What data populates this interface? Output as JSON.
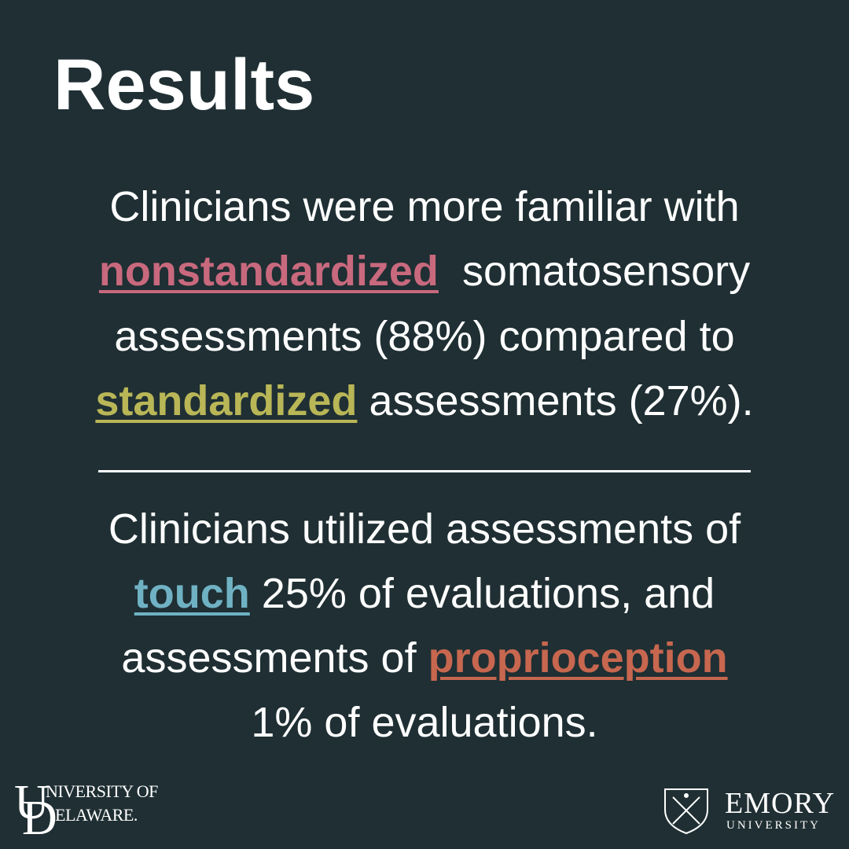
{
  "title": "Results",
  "findings": [
    {
      "lines": [
        [
          "Clinicians were more familiar with"
        ],
        [
          "nonstandardized",
          "somatosensory"
        ],
        [
          "assessments (88%) compared to"
        ],
        [
          "standardized",
          "assessments (27%)."
        ]
      ]
    },
    {
      "lines": [
        [
          "Clinicians utilized assessments of"
        ],
        [
          "touch",
          "25% of evaluations, and"
        ],
        [
          "assessments of",
          "proprioception"
        ],
        [
          "1% of evaluations."
        ]
      ]
    }
  ],
  "logos": {
    "delaware": {
      "line1": "NIVERSITY OF",
      "line2": "ELAWARE.",
      "initials": [
        "U",
        "D"
      ]
    },
    "emory": {
      "name": "EMORY",
      "sub": "UNIVERSITY"
    }
  }
}
